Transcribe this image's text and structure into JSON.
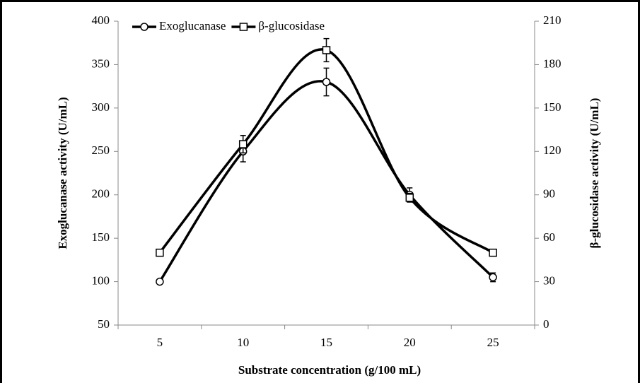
{
  "chart_data": {
    "type": "line",
    "x_label": "Substrate concentration (g/100 mL)",
    "y_label": "Exoglucanase activity (U/mL)",
    "y2_label": "β-glucosidase activity (U/mL)",
    "categories": [
      "5",
      "10",
      "15",
      "20",
      "25"
    ],
    "series": [
      {
        "name": "Exoglucanase",
        "color": "#000000",
        "marker": "circle",
        "values": [
          100,
          250,
          330,
          200,
          105
        ],
        "errors": [
          2,
          12,
          16,
          8,
          5
        ]
      },
      {
        "name": "β-glucosidase",
        "color": "#000000",
        "marker": "square",
        "axis": "y2",
        "values": [
          50,
          125,
          190,
          88,
          50
        ],
        "errors": [
          1,
          6,
          8,
          3,
          1
        ]
      }
    ],
    "ylim": [
      50,
      400
    ],
    "yticks": [
      50,
      100,
      150,
      200,
      250,
      300,
      350,
      400
    ],
    "y2lim": [
      0,
      210
    ],
    "y2ticks": [
      0,
      30,
      60,
      90,
      120,
      150,
      180,
      210
    ],
    "legend": "upper left",
    "smooth": true
  }
}
